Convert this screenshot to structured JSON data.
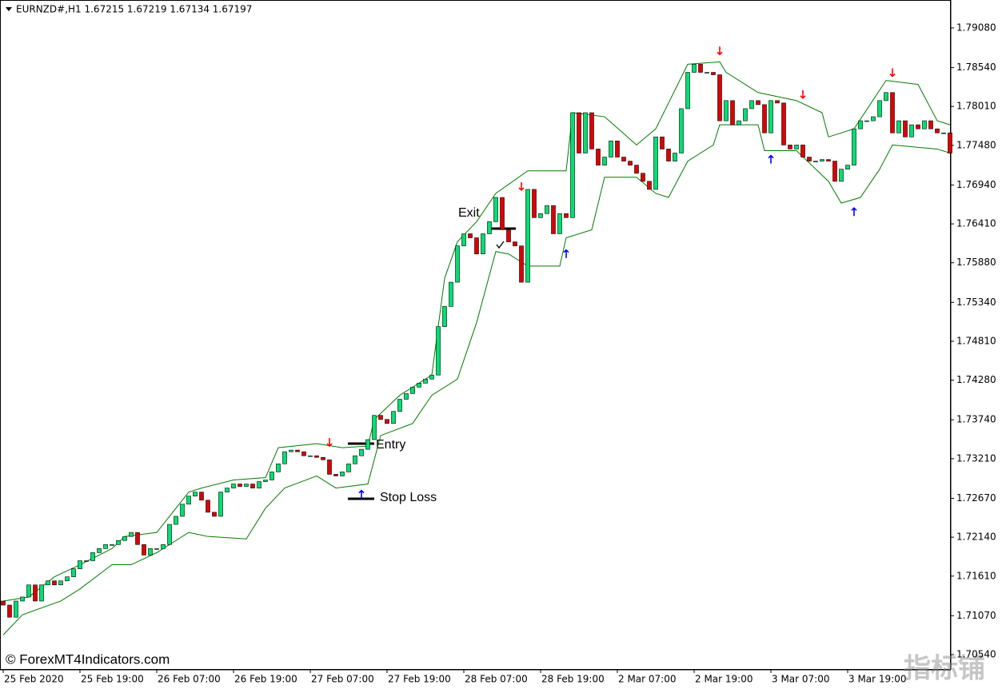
{
  "chart_data": {
    "type": "candlestick",
    "title": "EURNZD#,H1  1.67215 1.67219 1.67134 1.67197",
    "watermark": "© ForexMT4Indicators.com",
    "corner_mark": "指标铺",
    "bull_color": "#00e070",
    "bear_color": "#dd0000",
    "band_color": "#007a00",
    "up_arrow_color": "#0000ff",
    "down_arrow_color": "#ff0000",
    "ylim": [
      1.70333,
      1.79439
    ],
    "yticks": [
      {
        "value": 1.7908,
        "label": "1.79080"
      },
      {
        "value": 1.7854,
        "label": "1.78540"
      },
      {
        "value": 1.7801,
        "label": "1.78010"
      },
      {
        "value": 1.7748,
        "label": "1.77480"
      },
      {
        "value": 1.7694,
        "label": "1.76940"
      },
      {
        "value": 1.7641,
        "label": "1.76410"
      },
      {
        "value": 1.7588,
        "label": "1.75880"
      },
      {
        "value": 1.7534,
        "label": "1.75340"
      },
      {
        "value": 1.7481,
        "label": "1.74810"
      },
      {
        "value": 1.7428,
        "label": "1.74280"
      },
      {
        "value": 1.7374,
        "label": "1.73740"
      },
      {
        "value": 1.7321,
        "label": "1.73210"
      },
      {
        "value": 1.7267,
        "label": "1.72670"
      },
      {
        "value": 1.7214,
        "label": "1.72140"
      },
      {
        "value": 1.7161,
        "label": "1.71610"
      },
      {
        "value": 1.7107,
        "label": "1.71070"
      },
      {
        "value": 1.7054,
        "label": "1.70540"
      }
    ],
    "xticks": [
      0,
      12,
      24,
      36,
      48,
      60,
      72,
      84,
      96,
      108,
      120,
      132
    ],
    "xtick_labels": [
      "25 Feb 2020",
      "25 Feb 19:00",
      "26 Feb 07:00",
      "26 Feb 19:00",
      "27 Feb 07:00",
      "27 Feb 19:00",
      "28 Feb 07:00",
      "28 Feb 19:00",
      "2 Mar 07:00",
      "2 Mar 19:00",
      "3 Mar 07:00",
      "3 Mar 19:00"
    ],
    "open": [
      1.7127,
      1.71215,
      1.7105,
      1.7127,
      1.71325,
      1.7149,
      1.7127,
      1.7149,
      1.71545,
      1.7149,
      1.71545,
      1.716,
      1.7171,
      1.7182,
      1.7182,
      1.7193,
      1.71985,
      1.7204,
      1.7204,
      1.72095,
      1.7215,
      1.72205,
      1.7204,
      1.71897,
      1.71985,
      1.71985,
      1.7204,
      1.72315,
      1.72425,
      1.7259,
      1.727,
      1.72755,
      1.72645,
      1.7248,
      1.72425,
      1.72755,
      1.7281,
      1.72865,
      1.72832,
      1.72865,
      1.7281,
      1.72898,
      1.7292,
      1.7303,
      1.7314,
      1.73305,
      1.73327,
      1.73305,
      1.7325,
      1.7325,
      1.73228,
      1.73195,
      1.72997,
      1.72975,
      1.7303,
      1.7314,
      1.7325,
      1.73338,
      1.7347,
      1.738,
      1.73745,
      1.7369,
      1.73855,
      1.7402,
      1.74097,
      1.74185,
      1.7424,
      1.74295,
      1.7435,
      1.7501,
      1.75285,
      1.75615,
      1.7611,
      1.76275,
      1.7622,
      1.76,
      1.76275,
      1.7644,
      1.7677,
      1.7633,
      1.76165,
      1.7611,
      1.75615,
      1.7688,
      1.76495,
      1.7655,
      1.7666,
      1.76275,
      1.7655,
      1.76495,
      1.77925,
      1.77375,
      1.77925,
      1.7743,
      1.7721,
      1.7732,
      1.7754,
      1.7732,
      1.77265,
      1.7721,
      1.771,
      1.7699,
      1.7688,
      1.77595,
      1.7743,
      1.77265,
      1.77375,
      1.7798,
      1.78475,
      1.78585,
      1.78475,
      1.78475,
      1.78442,
      1.77815,
      1.7809,
      1.7776,
      1.77815,
      1.7798,
      1.7809,
      1.78035,
      1.7765,
      1.7809,
      1.78057,
      1.77485,
      1.7743,
      1.77485,
      1.7732,
      1.77265,
      1.77265,
      1.77287,
      1.77265,
      1.7699,
      1.77155,
      1.7721,
      1.77705,
      1.77815,
      1.77815,
      1.7787,
      1.7809,
      1.782,
      1.7765,
      1.77815,
      1.77595,
      1.7776,
      1.77705,
      1.77815,
      1.77705,
      1.7765,
      1.7765
    ],
    "close": [
      1.71215,
      1.7105,
      1.7127,
      1.71325,
      1.7149,
      1.7127,
      1.7149,
      1.71545,
      1.7149,
      1.71545,
      1.716,
      1.7171,
      1.7182,
      1.7182,
      1.7193,
      1.71985,
      1.7204,
      1.7204,
      1.72095,
      1.7215,
      1.72205,
      1.7204,
      1.71897,
      1.71985,
      1.71985,
      1.7204,
      1.72315,
      1.72425,
      1.7259,
      1.727,
      1.72755,
      1.72645,
      1.7248,
      1.72425,
      1.72755,
      1.7281,
      1.72865,
      1.72832,
      1.72865,
      1.7281,
      1.72898,
      1.7292,
      1.7303,
      1.7314,
      1.73305,
      1.73327,
      1.73305,
      1.7325,
      1.7325,
      1.73228,
      1.73195,
      1.72997,
      1.72975,
      1.7303,
      1.7314,
      1.7325,
      1.73338,
      1.7347,
      1.738,
      1.73745,
      1.7369,
      1.73855,
      1.7402,
      1.74097,
      1.74185,
      1.7424,
      1.74295,
      1.7435,
      1.7501,
      1.75285,
      1.75615,
      1.7611,
      1.76275,
      1.7622,
      1.76,
      1.76275,
      1.7644,
      1.7677,
      1.7633,
      1.76165,
      1.7611,
      1.75615,
      1.7688,
      1.76495,
      1.7655,
      1.7666,
      1.76275,
      1.7655,
      1.76495,
      1.77925,
      1.77375,
      1.77925,
      1.7743,
      1.7721,
      1.7732,
      1.7754,
      1.7732,
      1.77265,
      1.7721,
      1.771,
      1.7699,
      1.7688,
      1.77595,
      1.7743,
      1.77265,
      1.77375,
      1.7798,
      1.78475,
      1.78585,
      1.78475,
      1.78475,
      1.78442,
      1.77815,
      1.7809,
      1.7776,
      1.77815,
      1.7798,
      1.7809,
      1.78035,
      1.7765,
      1.7809,
      1.78057,
      1.77485,
      1.7743,
      1.77485,
      1.7732,
      1.77265,
      1.77265,
      1.77287,
      1.77265,
      1.7699,
      1.77155,
      1.7721,
      1.77705,
      1.77815,
      1.77815,
      1.7787,
      1.7809,
      1.782,
      1.7765,
      1.77815,
      1.77595,
      1.7776,
      1.77705,
      1.77815,
      1.77705,
      1.7765,
      1.7765,
      1.77375
    ],
    "bands": [
      {
        "x": [
          0,
          4,
          8,
          12,
          17,
          19,
          24,
          29,
          31,
          36,
          41,
          43,
          49,
          53,
          57,
          58,
          62,
          67,
          68,
          69,
          71,
          74,
          77,
          82,
          88,
          89,
          94,
          99,
          102,
          107,
          112,
          113,
          118,
          124,
          128,
          129,
          133,
          138,
          143,
          146,
          148
        ],
        "values": [
          1.7127,
          1.71325,
          1.716,
          1.71765,
          1.71985,
          1.7215,
          1.72205,
          1.72755,
          1.7281,
          1.7292,
          1.72953,
          1.7336,
          1.73415,
          1.7336,
          1.73382,
          1.73745,
          1.74075,
          1.7435,
          1.7501,
          1.7567,
          1.76165,
          1.7644,
          1.76825,
          1.77133,
          1.77133,
          1.77925,
          1.7787,
          1.77485,
          1.77705,
          1.78585,
          1.78618,
          1.78475,
          1.782,
          1.7809,
          1.77925,
          1.77595,
          1.77705,
          1.78365,
          1.7831,
          1.77815,
          1.7776
        ]
      },
      {
        "x": [
          0,
          3,
          9,
          12,
          17,
          20,
          24,
          29,
          32,
          38,
          41,
          44,
          49,
          52,
          57,
          59,
          64,
          67,
          71,
          74,
          77,
          79,
          82,
          87,
          88,
          92,
          94,
          99,
          102,
          104,
          107,
          111,
          112,
          118,
          119,
          124,
          129,
          131,
          134,
          137,
          139,
          146,
          148
        ],
        "values": [
          1.70808,
          1.71083,
          1.7127,
          1.71435,
          1.71765,
          1.71765,
          1.7193,
          1.72205,
          1.7215,
          1.72117,
          1.72535,
          1.7281,
          1.72975,
          1.7281,
          1.72865,
          1.73525,
          1.7369,
          1.74075,
          1.74295,
          1.75065,
          1.76033,
          1.76,
          1.75835,
          1.75835,
          1.7622,
          1.7633,
          1.77045,
          1.77045,
          1.76825,
          1.7677,
          1.77265,
          1.77485,
          1.7776,
          1.7776,
          1.77408,
          1.77408,
          1.7699,
          1.76693,
          1.7677,
          1.77155,
          1.77485,
          1.7743,
          1.77375
        ]
      }
    ],
    "down_signals": {
      "x": [
        51,
        81,
        112,
        125,
        139
      ],
      "values": [
        1.73437,
        1.76924,
        1.78772,
        1.78178,
        1.78475
      ]
    },
    "up_signals": {
      "x": [
        56,
        88,
        120,
        133
      ],
      "values": [
        1.72722,
        1.76,
        1.77287,
        1.76572
      ]
    },
    "annotations": [
      "Exit",
      "Entry",
      "Stop Loss"
    ]
  }
}
